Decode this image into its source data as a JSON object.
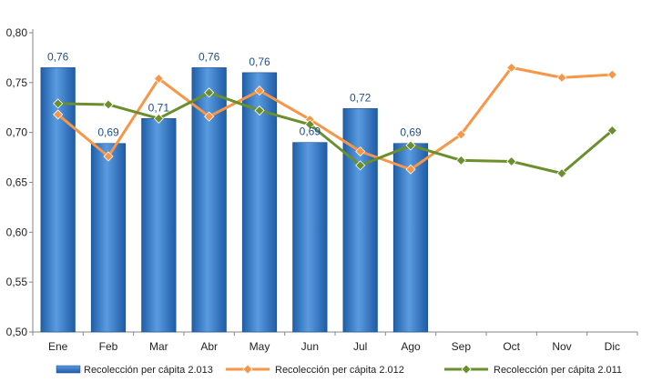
{
  "chart_data": {
    "type": "bar",
    "categories": [
      "Ene",
      "Feb",
      "Mar",
      "Abr",
      "May",
      "Jun",
      "Jul",
      "Ago",
      "Sep",
      "Oct",
      "Nov",
      "Dic"
    ],
    "ylim": [
      0.5,
      0.8
    ],
    "yticks": [
      "0,50",
      "0,55",
      "0,60",
      "0,65",
      "0,70",
      "0,75",
      "0,80"
    ],
    "grid": false,
    "legend_position": "bottom",
    "series": [
      {
        "name": "Recolección per cápita 2.013",
        "kind": "bar",
        "color": "#2E75C8",
        "values": [
          0.765,
          0.689,
          0.714,
          0.765,
          0.76,
          0.69,
          0.724,
          0.689,
          null,
          null,
          null,
          null
        ],
        "data_labels": [
          "0,76",
          "0,69",
          "0,71",
          "0,76",
          "0,76",
          "0,69",
          "0,72",
          "0,69",
          "",
          "",
          "",
          ""
        ]
      },
      {
        "name": "Recolección per cápita 2.012",
        "kind": "line",
        "color": "#F79646",
        "values": [
          0.718,
          0.676,
          0.754,
          0.716,
          0.742,
          0.713,
          0.681,
          0.663,
          0.698,
          0.765,
          0.755,
          0.758
        ]
      },
      {
        "name": "Recolección per cápita 2.011",
        "kind": "line",
        "color": "#6A8F2C",
        "values": [
          0.729,
          0.728,
          0.714,
          0.74,
          0.722,
          0.708,
          0.667,
          0.687,
          0.672,
          0.671,
          0.659,
          0.702
        ]
      }
    ]
  }
}
